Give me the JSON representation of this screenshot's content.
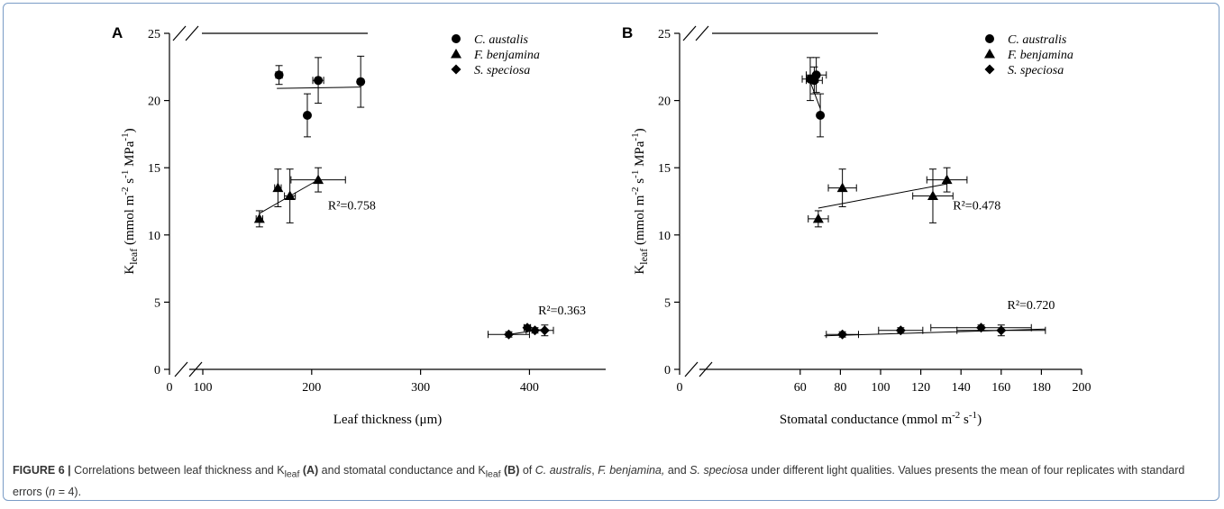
{
  "chart_data": [
    {
      "type": "scatter",
      "panel": "A",
      "xlabel": "Leaf thickness (μm)",
      "ylabel": "K_leaf (mmol m-2 s-1 MPa-1)",
      "xlim": [
        0,
        470
      ],
      "ylim": [
        0,
        25
      ],
      "x_axis_break": true,
      "y_axis_break": true,
      "xticks": [
        0,
        100,
        200,
        300,
        400
      ],
      "yticks": [
        0,
        5,
        10,
        15,
        20,
        25
      ],
      "legend": {
        "position": "top-right",
        "entries": [
          "C. austalis",
          "F. benjamina",
          "S. speciosa"
        ]
      },
      "series": [
        {
          "name": "C. austalis",
          "marker": "circle",
          "points": [
            {
              "x": 170,
              "y": 21.9,
              "xerr": 3,
              "yerr": 0.7
            },
            {
              "x": 206,
              "y": 21.5,
              "xerr": 5,
              "yerr": 1.7
            },
            {
              "x": 196,
              "y": 18.9,
              "xerr": 2,
              "yerr": 1.6
            },
            {
              "x": 245,
              "y": 21.4,
              "xerr": 2,
              "yerr": 1.9
            }
          ],
          "fit": {
            "x": [
              168,
              245
            ],
            "y": [
              20.9,
              21.0
            ]
          }
        },
        {
          "name": "F. benjamina",
          "marker": "triangle",
          "points": [
            {
              "x": 152,
              "y": 11.2,
              "xerr": 3,
              "yerr": 0.6
            },
            {
              "x": 169,
              "y": 13.5,
              "xerr": 3,
              "yerr": 1.4
            },
            {
              "x": 180,
              "y": 12.9,
              "xerr": 5,
              "yerr": 2.0
            },
            {
              "x": 206,
              "y": 14.1,
              "xerr": 25,
              "yerr": 0.9
            }
          ],
          "fit": {
            "x": [
              152,
              206
            ],
            "y": [
              11.6,
              14.1
            ]
          },
          "r2_label": "R²=0.758",
          "r2_at": {
            "x": 215,
            "y": 11.9
          }
        },
        {
          "name": "S. speciosa",
          "marker": "diamond",
          "points": [
            {
              "x": 381,
              "y": 2.6,
              "xerr": 19,
              "yerr": 0.2
            },
            {
              "x": 398,
              "y": 3.1,
              "xerr": 3,
              "yerr": 0.2
            },
            {
              "x": 405,
              "y": 2.9,
              "xerr": 8,
              "yerr": 0.2
            },
            {
              "x": 414,
              "y": 2.9,
              "xerr": 8,
              "yerr": 0.4
            }
          ],
          "fit": {
            "x": [
              381,
              414
            ],
            "y": [
              2.6,
              3.0
            ]
          },
          "r2_label": "R²=0.363",
          "r2_at": {
            "x": 408,
            "y": 4.1
          }
        }
      ]
    },
    {
      "type": "scatter",
      "panel": "B",
      "xlabel": "Stomatal conductance (mmol m-2 s-1)",
      "ylabel": "K_leaf (mmol m-2 s-1 MPa-1)",
      "xlim": [
        0,
        200
      ],
      "ylim": [
        0,
        25
      ],
      "x_axis_break": true,
      "y_axis_break": true,
      "xticks": [
        0,
        60,
        80,
        100,
        120,
        140,
        160,
        180,
        200
      ],
      "yticks": [
        0,
        5,
        10,
        15,
        20,
        25
      ],
      "legend": {
        "position": "top-right",
        "entries": [
          "C. australis",
          "F. benjamina",
          "S. speciosa"
        ]
      },
      "series": [
        {
          "name": "C. australis",
          "marker": "circle",
          "points": [
            {
              "x": 65,
              "y": 21.6,
              "xerr": 4,
              "yerr": 1.6
            },
            {
              "x": 67,
              "y": 21.5,
              "xerr": 4,
              "yerr": 1.0
            },
            {
              "x": 68,
              "y": 21.9,
              "xerr": 5,
              "yerr": 1.3
            },
            {
              "x": 70,
              "y": 18.9,
              "xerr": 1,
              "yerr": 1.6
            }
          ],
          "fit": {
            "x": [
              64,
              70
            ],
            "y": [
              21.8,
              19.4
            ]
          }
        },
        {
          "name": "F. benjamina",
          "marker": "triangle",
          "points": [
            {
              "x": 69,
              "y": 11.2,
              "xerr": 5,
              "yerr": 0.6
            },
            {
              "x": 81,
              "y": 13.5,
              "xerr": 7,
              "yerr": 1.4
            },
            {
              "x": 126,
              "y": 12.9,
              "xerr": 10,
              "yerr": 2.0
            },
            {
              "x": 133,
              "y": 14.1,
              "xerr": 10,
              "yerr": 0.9
            }
          ],
          "fit": {
            "x": [
              69,
              133
            ],
            "y": [
              12.0,
              13.8
            ]
          },
          "r2_label": "R²=0.478",
          "r2_at": {
            "x": 136,
            "y": 11.9
          }
        },
        {
          "name": "S. speciosa",
          "marker": "diamond",
          "points": [
            {
              "x": 81,
              "y": 2.6,
              "xerr": 8,
              "yerr": 0.2
            },
            {
              "x": 110,
              "y": 2.9,
              "xerr": 11,
              "yerr": 0.2
            },
            {
              "x": 150,
              "y": 3.1,
              "xerr": 25,
              "yerr": 0.2
            },
            {
              "x": 160,
              "y": 2.9,
              "xerr": 22,
              "yerr": 0.4
            }
          ],
          "fit": {
            "x": [
              72,
              182
            ],
            "y": [
              2.5,
              3.0
            ]
          },
          "r2_label": "R²=0.720",
          "r2_at": {
            "x": 163,
            "y": 4.5
          }
        }
      ]
    }
  ],
  "caption": {
    "label": "FIGURE 6 |",
    "t1": " Correlations between leaf thickness and K",
    "sub": "leaf",
    "refA": "(A)",
    "t2": " and stomatal conductance and K",
    "refB": "(B)",
    "t3": " of ",
    "sp1": "C. australis",
    "t4": ", ",
    "sp2": "F. benjamina,",
    "t5": " and ",
    "sp3": "S. speciosa",
    "t6": " under different light qualities. Values presents the mean of four replicates with standard errors (",
    "n": "n",
    "t7": " = 4)."
  }
}
